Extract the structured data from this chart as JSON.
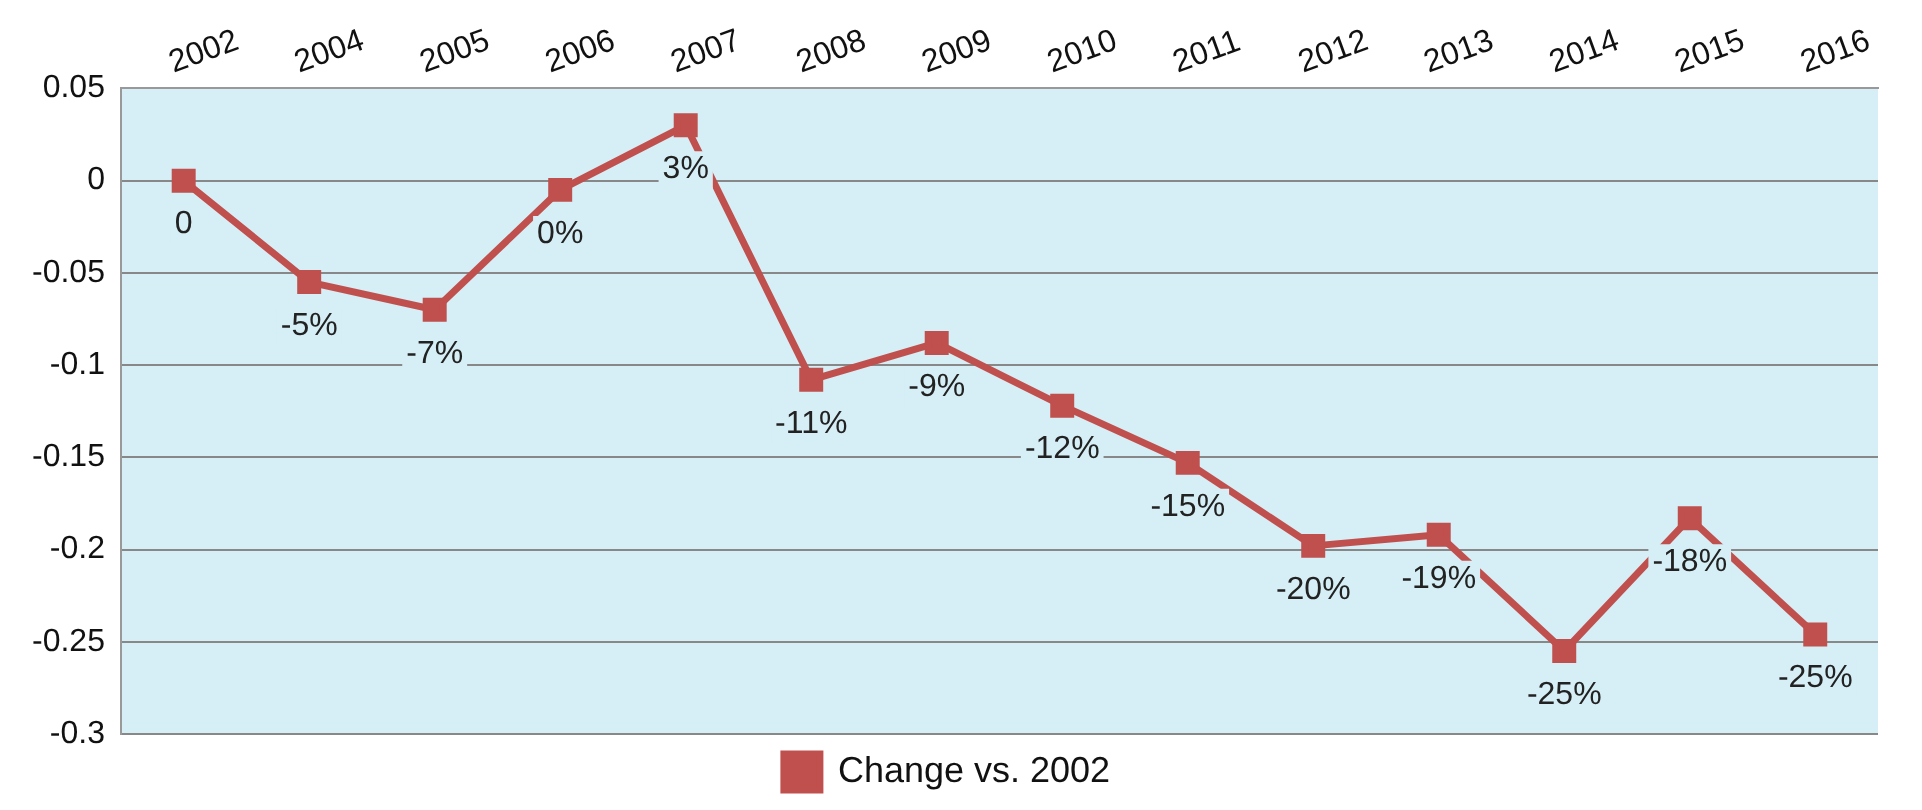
{
  "chart_data": {
    "type": "line",
    "categories": [
      "2002",
      "2004",
      "2005",
      "2006",
      "2007",
      "2008",
      "2009",
      "2010",
      "2011",
      "2012",
      "2013",
      "2014",
      "2015",
      "2016"
    ],
    "series": [
      {
        "name": "Change vs. 2002",
        "color": "#c0504d",
        "values": [
          0,
          -0.055,
          -0.07,
          -0.005,
          0.03,
          -0.108,
          -0.088,
          -0.122,
          -0.153,
          -0.198,
          -0.192,
          -0.255,
          -0.183,
          -0.246
        ],
        "value_labels": [
          "0",
          "-5%",
          "-7%",
          "0%",
          "3%",
          "-11%",
          "-9%",
          "-12%",
          "-15%",
          "-20%",
          "-19%",
          "-25%",
          "-18%",
          "-25%"
        ]
      }
    ],
    "ylim": [
      -0.3,
      0.05
    ],
    "yticks": [
      -0.3,
      -0.25,
      -0.2,
      -0.15,
      -0.1,
      -0.05,
      0,
      0.05
    ],
    "grid": "y",
    "legend": "bottom",
    "marker": "square",
    "line_style": "solid"
  }
}
